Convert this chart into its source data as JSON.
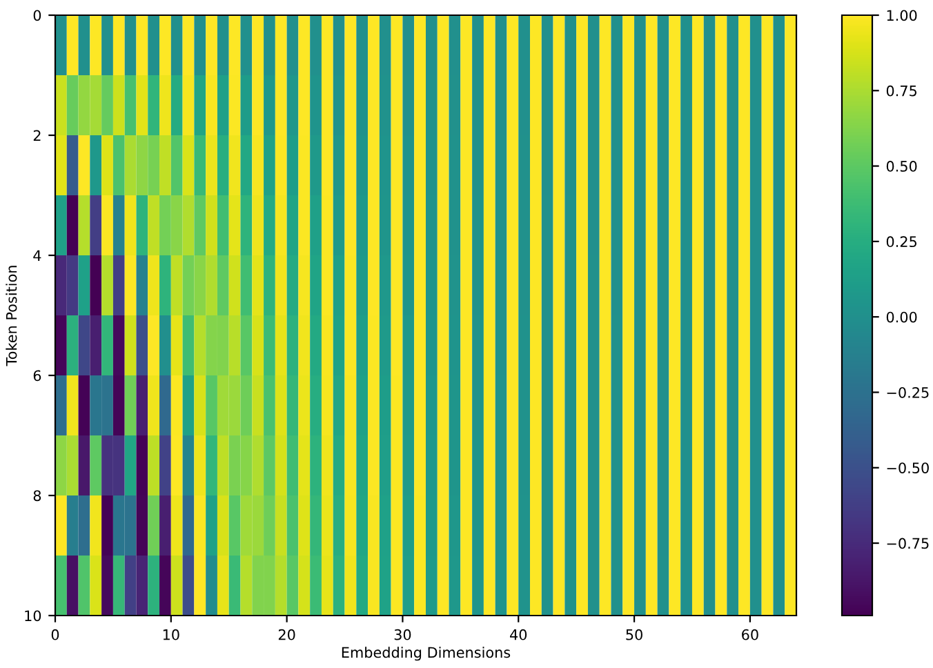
{
  "chart_data": {
    "type": "heatmap",
    "xlabel": "Embedding Dimensions",
    "ylabel": "Token Position",
    "xlim": [
      0,
      64
    ],
    "ylim": [
      10,
      0
    ],
    "xticks": [
      0,
      10,
      20,
      30,
      40,
      50,
      60
    ],
    "yticks": [
      0,
      2,
      4,
      6,
      8,
      10
    ],
    "clim": [
      -0.99,
      1.0
    ],
    "cticks": [
      {
        "value": -0.75,
        "label": "−0.75"
      },
      {
        "value": -0.5,
        "label": "−0.50"
      },
      {
        "value": -0.25,
        "label": "−0.25"
      },
      {
        "value": 0,
        "label": "0.00"
      },
      {
        "value": 0.25,
        "label": "0.25"
      },
      {
        "value": 0.5,
        "label": "0.50"
      },
      {
        "value": 0.75,
        "label": "0.75"
      },
      {
        "value": 1.0,
        "label": "1.00"
      }
    ],
    "cells": [
      [
        0,
        1,
        0,
        1,
        0,
        1,
        0,
        1,
        0,
        1,
        0,
        1,
        0,
        1,
        0,
        1,
        0,
        1,
        0,
        1,
        0,
        1,
        0,
        1,
        0,
        1,
        0,
        1,
        0,
        1,
        0,
        1,
        0,
        1,
        0,
        1,
        0,
        1,
        0,
        1,
        0,
        1,
        0,
        1,
        0,
        1,
        0,
        1,
        0,
        1,
        0,
        1,
        0,
        1,
        0,
        1,
        0,
        1,
        0,
        1,
        0,
        1,
        0,
        1
      ],
      [
        0.84,
        0.54,
        0.68,
        0.73,
        0.53,
        0.85,
        0.41,
        0.91,
        0.31,
        0.95,
        0.23,
        0.97,
        0.18,
        0.98,
        0.13,
        0.99,
        0.1,
        1,
        0.07,
        1,
        0.06,
        1,
        0.04,
        1,
        0.03,
        1,
        0.02,
        1,
        0.02,
        1,
        0.01,
        1,
        0.01,
        1,
        0.01,
        1,
        0.01,
        1,
        0,
        1,
        0,
        1,
        0,
        1,
        0,
        1,
        0,
        1,
        0,
        1,
        0,
        1,
        0,
        1,
        0,
        1,
        0,
        1,
        0,
        1,
        0,
        1,
        0,
        1
      ],
      [
        0.91,
        -0.42,
        1,
        0.07,
        0.9,
        0.43,
        0.75,
        0.66,
        0.59,
        0.81,
        0.46,
        0.89,
        0.35,
        0.94,
        0.26,
        0.96,
        0.2,
        0.98,
        0.15,
        0.99,
        0.11,
        0.99,
        0.08,
        1,
        0.06,
        1,
        0.05,
        1,
        0.04,
        1,
        0.03,
        1,
        0.02,
        1,
        0.02,
        1,
        0.01,
        1,
        0.01,
        1,
        0.01,
        1,
        0,
        1,
        0,
        1,
        0,
        1,
        0,
        1,
        0,
        1,
        0,
        1,
        0,
        1,
        0,
        1,
        0,
        1,
        0,
        1,
        0,
        1
      ],
      [
        0.14,
        -0.99,
        0.78,
        -0.63,
        0.99,
        -0.12,
        0.95,
        0.3,
        0.81,
        0.58,
        0.65,
        0.76,
        0.51,
        0.86,
        0.39,
        0.92,
        0.3,
        0.96,
        0.22,
        0.97,
        0.17,
        0.99,
        0.13,
        0.99,
        0.09,
        1,
        0.07,
        1,
        0.05,
        1,
        0.04,
        1,
        0.03,
        1,
        0.02,
        1,
        0.02,
        1,
        0.01,
        1,
        0.01,
        1,
        0.01,
        1,
        0.01,
        1,
        0,
        1,
        0,
        1,
        0,
        1,
        0,
        1,
        0,
        1,
        0,
        1,
        0,
        1,
        0,
        1,
        0,
        1
      ],
      [
        -0.76,
        -0.65,
        0.14,
        -0.99,
        0.78,
        -0.63,
        0.99,
        -0.12,
        0.95,
        0.3,
        0.81,
        0.58,
        0.65,
        0.76,
        0.51,
        0.86,
        0.39,
        0.92,
        0.3,
        0.96,
        0.22,
        0.97,
        0.17,
        0.99,
        0.13,
        0.99,
        0.09,
        1,
        0.07,
        1,
        0.05,
        1,
        0.04,
        1,
        0.03,
        1,
        0.02,
        1,
        0.02,
        1,
        0.01,
        1,
        0.01,
        1,
        0.01,
        1,
        0.01,
        1,
        0,
        1,
        0,
        1,
        0,
        1,
        0,
        1,
        0,
        1,
        0,
        1,
        0,
        1,
        0,
        1
      ],
      [
        -0.96,
        0.28,
        -0.57,
        -0.82,
        0.32,
        -0.95,
        0.86,
        -0.51,
        1,
        -0.01,
        0.93,
        0.38,
        0.78,
        0.63,
        0.62,
        0.79,
        0.48,
        0.88,
        0.37,
        0.93,
        0.28,
        0.96,
        0.21,
        0.98,
        0.16,
        0.99,
        0.12,
        0.99,
        0.09,
        1,
        0.07,
        1,
        0.05,
        1,
        0.04,
        1,
        0.03,
        1,
        0.02,
        1,
        0.02,
        1,
        0.01,
        1,
        0.01,
        1,
        0.01,
        1,
        0.01,
        1,
        0,
        1,
        0,
        1,
        0,
        1,
        0,
        1,
        0,
        1,
        0,
        1,
        0,
        1
      ],
      [
        -0.28,
        0.96,
        -0.98,
        -0.21,
        -0.23,
        -0.97,
        0.57,
        -0.82,
        0.95,
        -0.32,
        0.99,
        0.15,
        0.88,
        0.48,
        0.72,
        0.7,
        0.56,
        0.83,
        0.43,
        0.9,
        0.33,
        0.94,
        0.25,
        0.97,
        0.19,
        0.98,
        0.14,
        0.99,
        0.11,
        0.99,
        0.08,
        1,
        0.06,
        1,
        0.05,
        1,
        0.03,
        1,
        0.03,
        1,
        0.02,
        1,
        0.01,
        1,
        0.01,
        1,
        0.01,
        1,
        0.01,
        1,
        0,
        1,
        0,
        1,
        0,
        1,
        0,
        1,
        0,
        1,
        0,
        1,
        0,
        1
      ],
      [
        0.66,
        0.75,
        -0.86,
        0.51,
        -0.71,
        -0.7,
        0.19,
        -0.98,
        0.8,
        -0.6,
        1,
        -0.09,
        0.95,
        0.32,
        0.8,
        0.6,
        0.64,
        0.76,
        0.5,
        0.87,
        0.38,
        0.92,
        0.29,
        0.96,
        0.22,
        0.98,
        0.17,
        0.99,
        0.12,
        0.99,
        0.09,
        1,
        0.07,
        1,
        0.05,
        1,
        0.04,
        1,
        0.03,
        1,
        0.02,
        1,
        0.02,
        1,
        0.01,
        1,
        0.01,
        1,
        0.01,
        1,
        0.01,
        1,
        0,
        1,
        0,
        1,
        0,
        1,
        0,
        1,
        0,
        1,
        0,
        1
      ],
      [
        0.99,
        -0.15,
        -0.28,
        0.96,
        -0.98,
        -0.21,
        -0.23,
        -0.97,
        0.57,
        -0.82,
        0.95,
        -0.32,
        0.99,
        0.15,
        0.88,
        0.48,
        0.72,
        0.7,
        0.56,
        0.83,
        0.43,
        0.9,
        0.33,
        0.94,
        0.25,
        0.97,
        0.19,
        0.98,
        0.14,
        0.99,
        0.11,
        0.99,
        0.08,
        1,
        0.06,
        1,
        0.04,
        1,
        0.03,
        1,
        0.03,
        1,
        0.02,
        1,
        0.01,
        1,
        0.01,
        1,
        0.01,
        1,
        0.01,
        1,
        0,
        1,
        0,
        1,
        0,
        1,
        0,
        1,
        0,
        1,
        0,
        1
      ],
      [
        0.41,
        -0.91,
        0.45,
        0.89,
        -0.94,
        0.34,
        -0.61,
        -0.79,
        0.29,
        -0.96,
        0.85,
        -0.53,
        1,
        -0.03,
        0.93,
        0.36,
        0.78,
        0.62,
        0.62,
        0.78,
        0.48,
        0.87,
        0.37,
        0.93,
        0.28,
        0.96,
        0.21,
        0.98,
        0.16,
        0.99,
        0.12,
        0.99,
        0.09,
        1,
        0.07,
        1,
        0.05,
        1,
        0.04,
        1,
        0.03,
        1,
        0.02,
        1,
        0.02,
        1,
        0.01,
        1,
        0.01,
        1,
        0.01,
        1,
        0.01,
        1,
        0,
        1,
        0,
        1,
        0,
        1,
        0,
        1,
        0,
        1
      ]
    ]
  }
}
